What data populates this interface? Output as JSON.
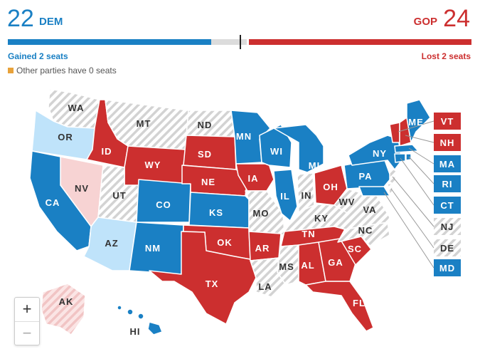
{
  "header": {
    "dem_count": "22",
    "dem_label": "DEM",
    "gop_count": "24",
    "gop_label": "GOP",
    "dem_change": "Gained 2 seats",
    "gop_change": "Lost 2 seats",
    "other_note": "Other parties have 0 seats"
  },
  "colors": {
    "dem": "#1a80c4",
    "gop": "#cc2f2f",
    "dem_light": "#bfe3fa",
    "gop_light": "#f7d3d3",
    "no_race": "#d3d3d3",
    "other": "#e8a23a"
  },
  "zoom": {
    "in": "+",
    "out": "−"
  },
  "states": {
    "WA": "WA",
    "OR": "OR",
    "MT": "MT",
    "ND": "ND",
    "ID": "ID",
    "SD": "SD",
    "WY": "WY",
    "NV": "NV",
    "UT": "UT",
    "CA": "CA",
    "CO": "CO",
    "NE": "NE",
    "AZ": "AZ",
    "NM": "NM",
    "KS": "KS",
    "OK": "OK",
    "TX": "TX",
    "MN": "MN",
    "IA": "IA",
    "MO": "MO",
    "AR": "AR",
    "LA": "LA",
    "WI": "WI",
    "IL": "IL",
    "MI": "MI",
    "IN": "IN",
    "OH": "OH",
    "KY": "KY",
    "TN": "TN",
    "MS": "MS",
    "AL": "AL",
    "GA": "GA",
    "FL": "FL",
    "SC": "SC",
    "NC": "NC",
    "VA": "VA",
    "WV": "WV",
    "PA": "PA",
    "NY": "NY",
    "ME": "ME",
    "VT": "VT",
    "NH": "NH",
    "MA": "MA",
    "RI": "RI",
    "CT": "CT",
    "NJ": "NJ",
    "DE": "DE",
    "MD": "MD",
    "AK": "AK",
    "HI": "HI"
  }
}
